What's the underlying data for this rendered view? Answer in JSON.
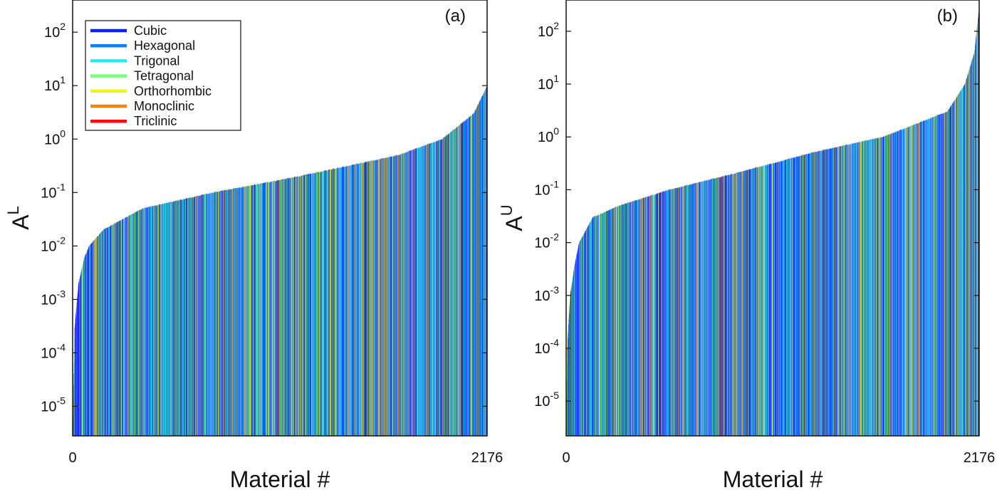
{
  "legend": {
    "entries": [
      {
        "label": "Cubic",
        "color": "#0a1eff"
      },
      {
        "label": "Hexagonal",
        "color": "#0a82ff"
      },
      {
        "label": "Trigonal",
        "color": "#14f0f5"
      },
      {
        "label": "Tetragonal",
        "color": "#78ff78"
      },
      {
        "label": "Orthorhombic",
        "color": "#f5f50a"
      },
      {
        "label": "Monoclinic",
        "color": "#ff820a"
      },
      {
        "label": "Triclinic",
        "color": "#ff0a0a"
      }
    ]
  },
  "chart_data": [
    {
      "type": "bar",
      "panel_label": "(a)",
      "ylabel_base": "A",
      "ylabel_sup": "L",
      "xlabel": "Material #",
      "xlim": [
        0,
        2176
      ],
      "x_tick_labels": [
        "0",
        "2176"
      ],
      "y_scale": "log",
      "ylim": [
        2.8e-06,
        400
      ],
      "y_ticks": [
        {
          "exp": "2",
          "value": 100
        },
        {
          "exp": "1",
          "value": 10
        },
        {
          "exp": "0",
          "value": 1
        },
        {
          "exp": "-1",
          "value": 0.1
        },
        {
          "exp": "-2",
          "value": 0.01
        },
        {
          "exp": "-3",
          "value": 0.001
        },
        {
          "exp": "-4",
          "value": 0.0001
        },
        {
          "exp": "-5",
          "value": 1e-05
        }
      ],
      "sorted_curve": {
        "x": [
          0,
          10,
          30,
          60,
          86,
          160,
          366,
          740,
          1190,
          1710,
          1940,
          2105,
          2176
        ],
        "y": [
          2e-06,
          0.0003,
          0.002,
          0.006,
          0.01,
          0.02,
          0.05,
          0.1,
          0.2,
          0.5,
          1,
          3,
          10
        ]
      },
      "legend_position": "top-left"
    },
    {
      "type": "bar",
      "panel_label": "(b)",
      "ylabel_base": "A",
      "ylabel_sup": "U",
      "xlabel": "Material #",
      "xlim": [
        0,
        2176
      ],
      "x_tick_labels": [
        "0",
        "2176"
      ],
      "y_scale": "log",
      "ylim": [
        2.2e-06,
        390
      ],
      "y_ticks": [
        {
          "exp": "2",
          "value": 100
        },
        {
          "exp": "1",
          "value": 10
        },
        {
          "exp": "0",
          "value": 1
        },
        {
          "exp": "-1",
          "value": 0.1
        },
        {
          "exp": "-2",
          "value": 0.01
        },
        {
          "exp": "-3",
          "value": 0.001
        },
        {
          "exp": "-4",
          "value": 0.0001
        },
        {
          "exp": "-5",
          "value": 1e-05
        }
      ],
      "sorted_curve": {
        "x": [
          0,
          5,
          20,
          45,
          68,
          140,
          280,
          544,
          882,
          1294,
          1670,
          2007,
          2100,
          2150,
          2176
        ],
        "y": [
          3e-06,
          0.0001,
          0.001,
          0.004,
          0.01,
          0.03,
          0.05,
          0.1,
          0.2,
          0.5,
          1,
          3,
          10,
          40,
          300
        ]
      }
    }
  ]
}
